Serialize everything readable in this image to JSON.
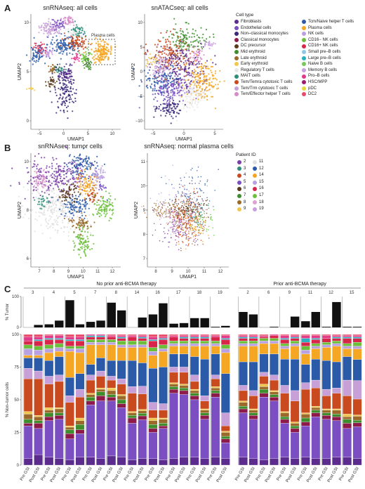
{
  "panel_labels": {
    "a": "A",
    "b": "B",
    "c": "C"
  },
  "cell_type_legend": {
    "title": "Cell type",
    "items": [
      {
        "label": "Fibroblasts",
        "color": "#5b2c8e"
      },
      {
        "label": "Endothelial cells",
        "color": "#7b4fc1"
      },
      {
        "label": "Non–classical monocytes",
        "color": "#3b2a7a"
      },
      {
        "label": "Classical monocytes",
        "color": "#8e1a4a"
      },
      {
        "label": "DC precursor",
        "color": "#5a3a1a"
      },
      {
        "label": "Mid erythroid",
        "color": "#3e8e2e"
      },
      {
        "label": "Late erythroid",
        "color": "#9b6a2a"
      },
      {
        "label": "Early erythroid",
        "color": "#f0c850"
      },
      {
        "label": "Regulatory T cells",
        "color": "#e8e8e8"
      },
      {
        "label": "MAIT cells",
        "color": "#2e8e7a"
      },
      {
        "label": "Tem/Temra cytotoxic T cells",
        "color": "#c84a1e"
      },
      {
        "label": "Tem/Trm cytotoxic T cells",
        "color": "#c8a0d8"
      },
      {
        "label": "Tem/Effector helper T cells",
        "color": "#d88ac8"
      },
      {
        "label": "Tcm/Naive helper T cells",
        "color": "#2a5aa8"
      },
      {
        "label": "Plasma cells",
        "color": "#f5a623"
      },
      {
        "label": "NK cells",
        "color": "#b9a0e0"
      },
      {
        "label": "CD16− NK cells",
        "color": "#6bbf3a"
      },
      {
        "label": "CD16+ NK cells",
        "color": "#d8264a"
      },
      {
        "label": "Small pre–B cells",
        "color": "#8ec8e8"
      },
      {
        "label": "Large pre–B cells",
        "color": "#2ab0c0"
      },
      {
        "label": "Naive B cells",
        "color": "#7ac85a"
      },
      {
        "label": "Memory B cells",
        "color": "#c8a0e0"
      },
      {
        "label": "Pro–B cells",
        "color": "#e03a8a"
      },
      {
        "label": "HSC/MPP",
        "color": "#a01870"
      },
      {
        "label": "pDC",
        "color": "#e8d840"
      },
      {
        "label": "DC2",
        "color": "#e84a6a"
      }
    ]
  },
  "patient_legend": {
    "title": "Patient ID",
    "items": [
      {
        "label": "2",
        "color": "#7b3fa8"
      },
      {
        "label": "3",
        "color": "#2e8e7a"
      },
      {
        "label": "4",
        "color": "#c84a1e"
      },
      {
        "label": "5",
        "color": "#7b4fc1"
      },
      {
        "label": "6",
        "color": "#5a3a1a"
      },
      {
        "label": "7",
        "color": "#3e8e2e"
      },
      {
        "label": "8",
        "color": "#9b6a2a"
      },
      {
        "label": "9",
        "color": "#f0c850"
      },
      {
        "label": "11",
        "color": "#e0e0e0"
      },
      {
        "label": "12",
        "color": "#2a5aa8"
      },
      {
        "label": "14",
        "color": "#f5a623"
      },
      {
        "label": "15",
        "color": "#b9a0e0"
      },
      {
        "label": "16",
        "color": "#d8264a"
      },
      {
        "label": "17",
        "color": "#6bbf3a"
      },
      {
        "label": "18",
        "color": "#e0a0d0"
      },
      {
        "label": "19",
        "color": "#c8a0e0"
      }
    ]
  },
  "chart_data": [
    {
      "type": "scatter",
      "title": "snRNAseq: all cells",
      "xlabel": "UMAP1",
      "ylabel": "UMAP2",
      "xticks": [
        "−5",
        "0",
        "5",
        "10"
      ],
      "yticks": [
        "0",
        "5",
        "10"
      ],
      "annotation": "Plasma cells"
    },
    {
      "type": "scatter",
      "title": "snATACseq: all cells",
      "xlabel": "UMAP1",
      "ylabel": "UMAP2",
      "xticks": [
        "−5",
        "0",
        "5"
      ],
      "yticks": [
        "−10",
        "−5",
        "0",
        "5",
        "10"
      ]
    },
    {
      "type": "scatter",
      "title": "snRNAseq: tumor cells",
      "xlabel": "UMAP1",
      "ylabel": "UMAP2",
      "xticks": [
        "7",
        "8",
        "9",
        "10",
        "11",
        "12"
      ],
      "yticks": [
        "6",
        "8",
        "10"
      ]
    },
    {
      "type": "scatter",
      "title": "snRNAseq: normal plasma cells",
      "xlabel": "UMAP1",
      "ylabel": "UMAP2",
      "xticks": [
        "8",
        "9",
        "10",
        "11",
        "12"
      ],
      "yticks": [
        "7",
        "8",
        "9",
        "10",
        "11"
      ]
    },
    {
      "type": "bar",
      "groups": [
        {
          "label": "No prior anti-BCMA therapy",
          "patients": [
            "3",
            "4",
            "5",
            "7",
            "8",
            "14",
            "16",
            "17",
            "18",
            "19"
          ]
        },
        {
          "label": "Prior anti-BCMA therapy",
          "patients": [
            "2",
            "6",
            "9",
            "11",
            "12",
            "15"
          ]
        }
      ],
      "bar_labels": [
        "Pre GSI",
        "Post GSI"
      ],
      "top_ylabel": "% Tumor",
      "top_yticks": [
        "0",
        "100"
      ],
      "bottom_ylabel": "% Non–tumor cells",
      "bottom_yticks": [
        "0",
        "25",
        "50",
        "75",
        "100"
      ],
      "tumor_pct": {
        "3": [
          0,
          8
        ],
        "4": [
          10,
          22
        ],
        "5": [
          88,
          10
        ],
        "7": [
          18,
          22
        ],
        "8": [
          80,
          55
        ],
        "14": [
          0,
          32
        ],
        "16": [
          42,
          78
        ],
        "17": [
          12,
          14
        ],
        "18": [
          30,
          30
        ],
        "19": [
          2,
          5
        ],
        "2": [
          50,
          42
        ],
        "6": [
          0,
          2
        ],
        "9": [
          0,
          35
        ],
        "11": [
          20,
          50
        ],
        "12": [
          2,
          82
        ],
        "15": [
          2,
          2
        ]
      },
      "composition_order": [
        "Fibroblasts",
        "Endothelial cells",
        "Classical monocytes",
        "Mid erythroid",
        "Late erythroid",
        "Early erythroid",
        "Tem/Temra cytotoxic T cells",
        "Tem/Trm cytotoxic T cells",
        "Tcm/Naive helper T cells",
        "Plasma cells",
        "NK cells",
        "CD16− NK cells",
        "CD16+ NK cells",
        "Large pre–B cells",
        "Pro–B cells",
        "DC2"
      ],
      "composition_pct": {
        "3": [
          [
            5,
            25,
            2,
            3,
            4,
            2,
            25,
            8,
            8,
            2,
            5,
            3,
            3,
            0,
            3,
            2
          ],
          [
            8,
            20,
            4,
            2,
            3,
            1,
            28,
            6,
            10,
            2,
            4,
            3,
            4,
            1,
            2,
            2
          ]
        ],
        "4": [
          [
            6,
            28,
            3,
            3,
            2,
            2,
            18,
            6,
            12,
            6,
            3,
            3,
            4,
            1,
            2,
            1
          ],
          [
            5,
            30,
            3,
            2,
            3,
            1,
            20,
            5,
            14,
            4,
            3,
            3,
            3,
            1,
            2,
            1
          ]
        ],
        "5": [
          [
            4,
            16,
            4,
            3,
            2,
            1,
            18,
            5,
            14,
            20,
            2,
            2,
            4,
            1,
            2,
            2
          ],
          [
            6,
            18,
            3,
            4,
            3,
            2,
            16,
            6,
            12,
            16,
            3,
            2,
            4,
            1,
            2,
            2
          ]
        ],
        "7": [
          [
            6,
            40,
            3,
            3,
            2,
            1,
            10,
            4,
            8,
            15,
            2,
            2,
            2,
            1,
            1,
            0
          ],
          [
            5,
            44,
            4,
            3,
            2,
            1,
            9,
            4,
            10,
            10,
            2,
            2,
            2,
            1,
            1,
            0
          ]
        ],
        "8": [
          [
            7,
            42,
            3,
            2,
            3,
            2,
            6,
            3,
            12,
            12,
            2,
            2,
            2,
            0,
            1,
            1
          ],
          [
            6,
            38,
            3,
            3,
            3,
            1,
            8,
            4,
            14,
            10,
            2,
            3,
            2,
            1,
            1,
            1
          ]
        ],
        "14": [
          [
            4,
            28,
            4,
            2,
            2,
            1,
            14,
            5,
            20,
            10,
            2,
            3,
            3,
            0,
            1,
            1
          ],
          [
            5,
            30,
            3,
            2,
            2,
            1,
            12,
            6,
            18,
            12,
            2,
            3,
            2,
            1,
            1,
            1
          ]
        ],
        "16": [
          [
            5,
            20,
            3,
            3,
            3,
            2,
            6,
            6,
            26,
            10,
            3,
            3,
            5,
            1,
            2,
            2
          ],
          [
            4,
            24,
            2,
            2,
            3,
            1,
            6,
            5,
            28,
            12,
            2,
            3,
            4,
            1,
            1,
            2
          ]
        ],
        "17": [
          [
            5,
            50,
            3,
            2,
            2,
            1,
            8,
            4,
            10,
            6,
            2,
            2,
            3,
            0,
            1,
            1
          ],
          [
            6,
            48,
            3,
            2,
            2,
            1,
            9,
            4,
            10,
            6,
            2,
            2,
            2,
            1,
            1,
            1
          ]
        ],
        "18": [
          [
            6,
            44,
            3,
            2,
            2,
            1,
            6,
            5,
            14,
            8,
            2,
            2,
            2,
            1,
            1,
            1
          ],
          [
            5,
            30,
            3,
            2,
            2,
            1,
            6,
            4,
            28,
            10,
            2,
            2,
            2,
            1,
            1,
            1
          ]
        ],
        "19": [
          [
            6,
            46,
            3,
            2,
            2,
            1,
            6,
            3,
            16,
            6,
            2,
            2,
            3,
            0,
            1,
            1
          ],
          [
            5,
            12,
            3,
            2,
            3,
            1,
            4,
            10,
            30,
            16,
            3,
            3,
            4,
            1,
            2,
            1
          ]
        ],
        "2": [
          [
            6,
            34,
            3,
            2,
            3,
            1,
            8,
            4,
            18,
            12,
            2,
            2,
            2,
            1,
            1,
            1
          ],
          [
            5,
            30,
            3,
            2,
            2,
            1,
            10,
            4,
            22,
            12,
            2,
            2,
            2,
            1,
            1,
            1
          ]
        ],
        "6": [
          [
            4,
            48,
            3,
            3,
            2,
            2,
            6,
            3,
            14,
            8,
            2,
            2,
            1,
            0,
            1,
            1
          ],
          [
            5,
            44,
            3,
            2,
            2,
            1,
            8,
            4,
            16,
            8,
            2,
            2,
            2,
            0,
            1,
            0
          ]
        ],
        "9": [
          [
            6,
            26,
            3,
            2,
            3,
            1,
            14,
            6,
            20,
            8,
            2,
            2,
            3,
            1,
            2,
            1
          ],
          [
            5,
            20,
            3,
            2,
            2,
            1,
            16,
            8,
            24,
            10,
            2,
            2,
            2,
            1,
            1,
            1
          ]
        ],
        "11": [
          [
            6,
            24,
            3,
            3,
            3,
            1,
            18,
            5,
            14,
            8,
            3,
            3,
            3,
            3,
            2,
            1
          ],
          [
            5,
            32,
            3,
            2,
            2,
            1,
            14,
            6,
            16,
            8,
            2,
            2,
            3,
            1,
            2,
            1
          ]
        ],
        "12": [
          [
            5,
            30,
            3,
            2,
            2,
            1,
            10,
            5,
            22,
            10,
            2,
            2,
            3,
            0,
            2,
            1
          ],
          [
            6,
            28,
            3,
            2,
            3,
            1,
            12,
            4,
            20,
            12,
            2,
            2,
            2,
            1,
            1,
            1
          ]
        ],
        "15": [
          [
            6,
            22,
            4,
            3,
            2,
            2,
            14,
            12,
            18,
            6,
            2,
            2,
            4,
            1,
            1,
            1
          ],
          [
            5,
            24,
            3,
            2,
            3,
            1,
            12,
            14,
            16,
            8,
            2,
            3,
            3,
            1,
            1,
            1
          ]
        ]
      }
    }
  ]
}
